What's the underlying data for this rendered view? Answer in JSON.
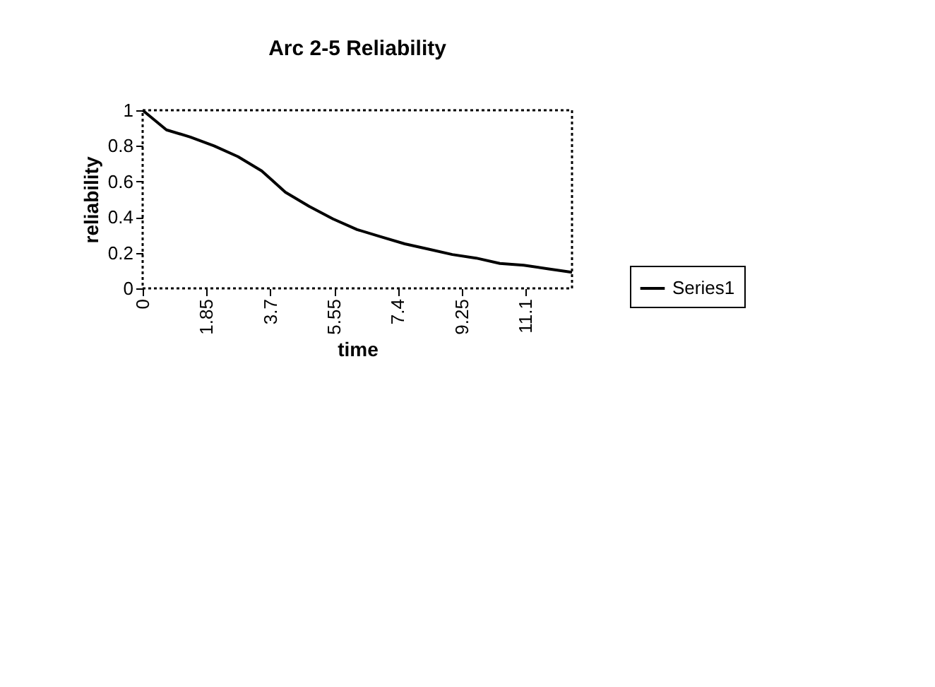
{
  "chart_data": {
    "type": "line",
    "title": "Arc 2-5 Reliability",
    "xlabel": "time",
    "ylabel": "reliability",
    "x": [
      0,
      0.69,
      1.38,
      2.07,
      2.76,
      3.45,
      4.14,
      4.83,
      5.52,
      6.22,
      6.9,
      7.6,
      8.29,
      8.98,
      9.67,
      10.36,
      11.05,
      11.74,
      12.45
    ],
    "series": [
      {
        "name": "Series1",
        "color": "#000000",
        "values": [
          1,
          0.89,
          0.85,
          0.8,
          0.74,
          0.66,
          0.54,
          0.46,
          0.39,
          0.33,
          0.29,
          0.25,
          0.22,
          0.19,
          0.17,
          0.14,
          0.13,
          0.11,
          0.09
        ]
      }
    ],
    "xlim": [
      0,
      12.45
    ],
    "xticks": [
      0,
      1.85,
      3.7,
      5.55,
      7.4,
      9.25,
      11.1
    ],
    "ylim": [
      0,
      1
    ],
    "yticks": [
      0,
      0.2,
      0.4,
      0.6,
      0.8,
      1
    ],
    "grid": false,
    "legend": "right",
    "marker": "none",
    "line_style": "solid"
  }
}
